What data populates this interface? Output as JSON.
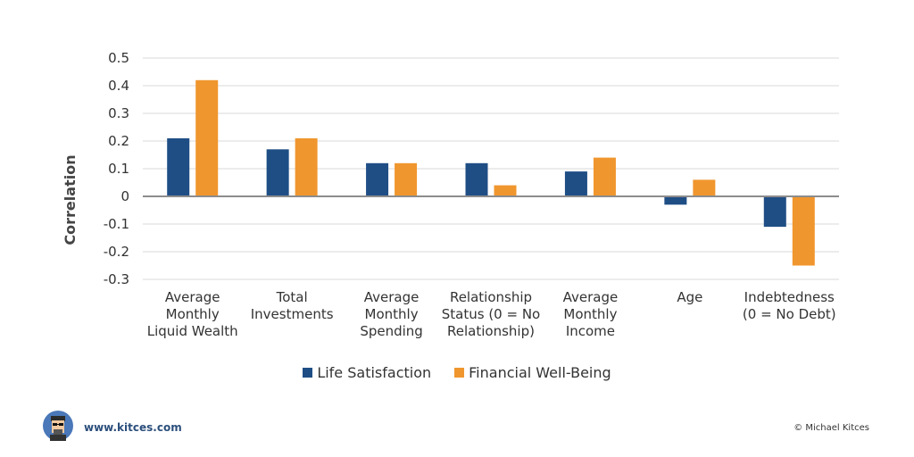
{
  "chart_data": {
    "type": "bar",
    "title": "",
    "xlabel": "",
    "ylabel": "Correlation",
    "ylim": [
      -0.3,
      0.5
    ],
    "yticks": [
      0.5,
      0.4,
      0.3,
      0.2,
      0.1,
      0,
      -0.1,
      -0.2,
      -0.3
    ],
    "ytick_labels": [
      "0.5",
      "0.4",
      "0.3",
      "0.2",
      "0.1",
      "0",
      "-0.1",
      "-0.2",
      "-0.3"
    ],
    "grid": true,
    "legend_position": "bottom-center",
    "categories": [
      [
        "Average",
        "Monthly",
        "Liquid Wealth"
      ],
      [
        "Total",
        "Investments"
      ],
      [
        "Average",
        "Monthly",
        "Spending"
      ],
      [
        "Relationship",
        "Status (0 = No",
        "Relationship)"
      ],
      [
        "Average",
        "Monthly",
        "Income"
      ],
      [
        "Age"
      ],
      [
        "Indebtedness",
        "(0 = No Debt)"
      ]
    ],
    "series": [
      {
        "name": "Life Satisfaction",
        "color": "#1f4e85",
        "values": [
          0.21,
          0.17,
          0.12,
          0.12,
          0.09,
          -0.03,
          -0.11
        ]
      },
      {
        "name": "Financial Well-Being",
        "color": "#f0962e",
        "values": [
          0.42,
          0.21,
          0.12,
          0.04,
          0.14,
          0.06,
          -0.25
        ]
      }
    ]
  },
  "footer": {
    "url": "www.kitces.com",
    "copyright": "© Michael Kitces",
    "logo_icon": "avatar-icon"
  }
}
